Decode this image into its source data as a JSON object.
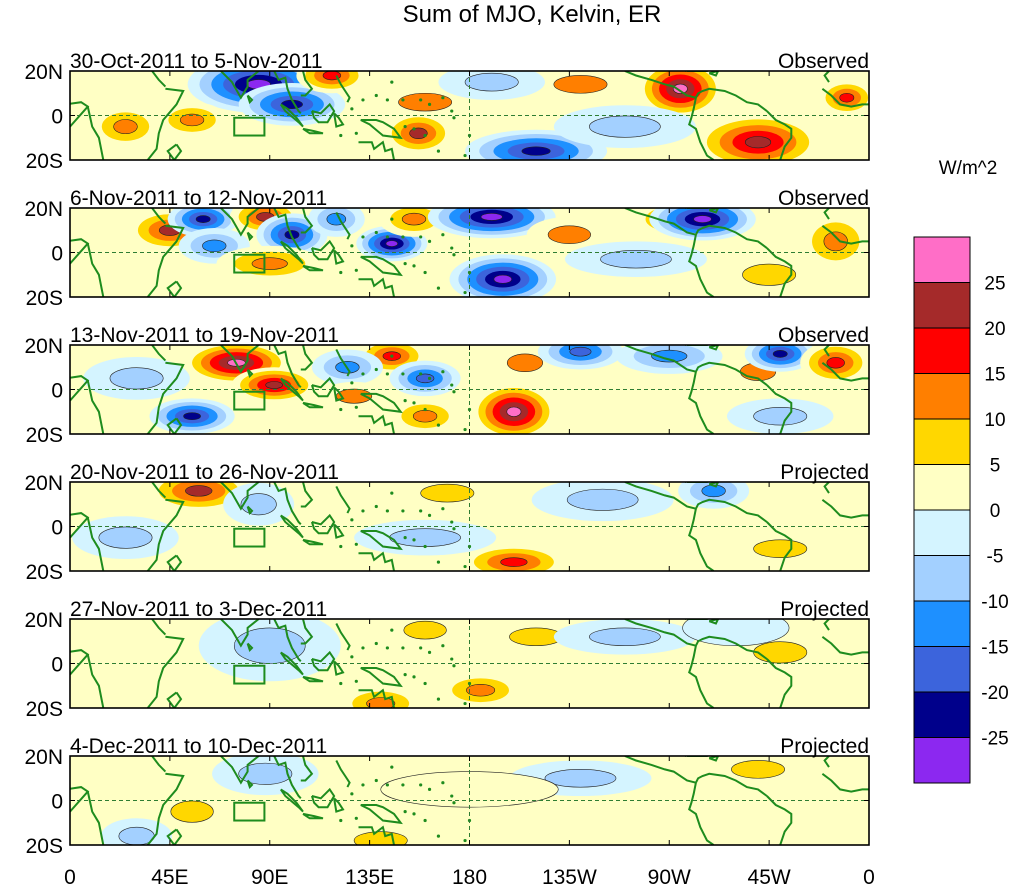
{
  "chart_data": {
    "type": "heatmap",
    "title": "Sum of MJO, Kelvin, ER",
    "units_label": "W/m^2",
    "x_ticks": [
      "0",
      "45E",
      "90E",
      "135E",
      "180",
      "135W",
      "90W",
      "45W",
      "0"
    ],
    "y_ticks": [
      "20N",
      "0",
      "20S"
    ],
    "ylim": [
      -20,
      20
    ],
    "xlim": [
      0,
      360
    ],
    "colorbar": {
      "levels": [
        -25,
        -20,
        -15,
        -10,
        -5,
        0,
        5,
        10,
        15,
        20,
        25
      ],
      "labels": [
        "25",
        "20",
        "15",
        "10",
        "5",
        "0",
        "-5",
        "-10",
        "-15",
        "-20",
        "-25"
      ],
      "colors": [
        "#ff6ec7",
        "#a52a2a",
        "#ff0000",
        "#ff7f00",
        "#ffd700",
        "#ffffc4",
        "#d4f4ff",
        "#a3d0ff",
        "#1e90ff",
        "#3c64dc",
        "#00008b",
        "#8c28f0"
      ]
    },
    "panels": [
      {
        "date_range": "30-Oct-2011 to 5-Nov-2011",
        "status": "Observed",
        "features": [
          {
            "lon": 85,
            "lat": 14,
            "value": -30,
            "rlon": 20,
            "rlat": 8
          },
          {
            "lon": 100,
            "lat": 5,
            "value": -22,
            "rlon": 15,
            "rlat": 6
          },
          {
            "lon": 118,
            "lat": 18,
            "value": 18,
            "rlon": 10,
            "rlat": 5
          },
          {
            "lon": 55,
            "lat": -2,
            "value": 12,
            "rlon": 10,
            "rlat": 5
          },
          {
            "lon": 25,
            "lat": -5,
            "value": 12,
            "rlon": 10,
            "rlat": 6
          },
          {
            "lon": 160,
            "lat": 6,
            "value": 10,
            "rlon": 15,
            "rlat": 5
          },
          {
            "lon": 157,
            "lat": -8,
            "value": 20,
            "rlon": 10,
            "rlat": 6
          },
          {
            "lon": 210,
            "lat": -16,
            "value": -22,
            "rlon": 20,
            "rlat": 6
          },
          {
            "lon": 275,
            "lat": 12,
            "value": 28,
            "rlon": 12,
            "rlat": 8
          },
          {
            "lon": 310,
            "lat": -12,
            "value": 22,
            "rlon": 18,
            "rlat": 8
          },
          {
            "lon": 230,
            "lat": 14,
            "value": 10,
            "rlon": 15,
            "rlat": 5
          },
          {
            "lon": 250,
            "lat": -5,
            "value": -7,
            "rlon": 20,
            "rlat": 6
          },
          {
            "lon": 190,
            "lat": 15,
            "value": -8,
            "rlon": 15,
            "rlat": 5
          },
          {
            "lon": 350,
            "lat": 8,
            "value": 18,
            "rlon": 8,
            "rlat": 5
          }
        ]
      },
      {
        "date_range": "6-Nov-2011 to 12-Nov-2011",
        "status": "Observed",
        "features": [
          {
            "lon": 45,
            "lat": 10,
            "value": 20,
            "rlon": 12,
            "rlat": 6
          },
          {
            "lon": 60,
            "lat": 15,
            "value": -22,
            "rlon": 10,
            "rlat": 5
          },
          {
            "lon": 65,
            "lat": 3,
            "value": -12,
            "rlon": 10,
            "rlat": 5
          },
          {
            "lon": 88,
            "lat": 16,
            "value": 20,
            "rlon": 10,
            "rlat": 5
          },
          {
            "lon": 100,
            "lat": 8,
            "value": -22,
            "rlon": 10,
            "rlat": 6
          },
          {
            "lon": 120,
            "lat": 15,
            "value": -15,
            "rlon": 8,
            "rlat": 5
          },
          {
            "lon": 145,
            "lat": 4,
            "value": -26,
            "rlon": 10,
            "rlat": 5
          },
          {
            "lon": 155,
            "lat": 15,
            "value": 12,
            "rlon": 10,
            "rlat": 5
          },
          {
            "lon": 190,
            "lat": 16,
            "value": -26,
            "rlon": 18,
            "rlat": 6
          },
          {
            "lon": 195,
            "lat": -12,
            "value": -28,
            "rlon": 15,
            "rlat": 7
          },
          {
            "lon": 90,
            "lat": -5,
            "value": 12,
            "rlon": 15,
            "rlat": 5
          },
          {
            "lon": 225,
            "lat": 8,
            "value": 10,
            "rlon": 12,
            "rlat": 5
          },
          {
            "lon": 255,
            "lat": -3,
            "value": -10,
            "rlon": 20,
            "rlat": 5
          },
          {
            "lon": 270,
            "lat": 15,
            "value": 12,
            "rlon": 10,
            "rlat": 5
          },
          {
            "lon": 285,
            "lat": 15,
            "value": -26,
            "rlon": 15,
            "rlat": 6
          },
          {
            "lon": 315,
            "lat": -10,
            "value": 8,
            "rlon": 15,
            "rlat": 6
          },
          {
            "lon": 345,
            "lat": 5,
            "value": 12,
            "rlon": 10,
            "rlat": 8
          }
        ]
      },
      {
        "date_range": "13-Nov-2011 to 19-Nov-2011",
        "status": "Observed",
        "features": [
          {
            "lon": 75,
            "lat": 12,
            "value": 27,
            "rlon": 15,
            "rlat": 6
          },
          {
            "lon": 92,
            "lat": 2,
            "value": 22,
            "rlon": 12,
            "rlat": 5
          },
          {
            "lon": 55,
            "lat": -12,
            "value": -22,
            "rlon": 12,
            "rlat": 5
          },
          {
            "lon": 30,
            "lat": 5,
            "value": -8,
            "rlon": 15,
            "rlat": 6
          },
          {
            "lon": 145,
            "lat": 15,
            "value": 18,
            "rlon": 10,
            "rlat": 5
          },
          {
            "lon": 125,
            "lat": 10,
            "value": -15,
            "rlon": 10,
            "rlat": 5
          },
          {
            "lon": 128,
            "lat": -3,
            "value": 10,
            "rlon": 10,
            "rlat": 4
          },
          {
            "lon": 160,
            "lat": 5,
            "value": -18,
            "rlon": 10,
            "rlat": 5
          },
          {
            "lon": 160,
            "lat": -12,
            "value": 12,
            "rlon": 10,
            "rlat": 5
          },
          {
            "lon": 200,
            "lat": -10,
            "value": 28,
            "rlon": 12,
            "rlat": 8
          },
          {
            "lon": 205,
            "lat": 12,
            "value": 10,
            "rlon": 10,
            "rlat": 5
          },
          {
            "lon": 230,
            "lat": 17,
            "value": -20,
            "rlon": 12,
            "rlat": 5
          },
          {
            "lon": 270,
            "lat": 15,
            "value": -15,
            "rlon": 15,
            "rlat": 5
          },
          {
            "lon": 310,
            "lat": 8,
            "value": 10,
            "rlon": 10,
            "rlat": 5
          },
          {
            "lon": 320,
            "lat": 16,
            "value": -22,
            "rlon": 10,
            "rlat": 5
          },
          {
            "lon": 345,
            "lat": 12,
            "value": 18,
            "rlon": 10,
            "rlat": 6
          },
          {
            "lon": 320,
            "lat": -12,
            "value": -10,
            "rlon": 15,
            "rlat": 5
          }
        ]
      },
      {
        "date_range": "20-Nov-2011 to 26-Nov-2011",
        "status": "Projected",
        "features": [
          {
            "lon": 58,
            "lat": 16,
            "value": 20,
            "rlon": 15,
            "rlat": 6
          },
          {
            "lon": 85,
            "lat": 10,
            "value": -10,
            "rlon": 10,
            "rlat": 6
          },
          {
            "lon": 170,
            "lat": 15,
            "value": 8,
            "rlon": 15,
            "rlat": 5
          },
          {
            "lon": 200,
            "lat": -16,
            "value": 16,
            "rlon": 15,
            "rlat": 5
          },
          {
            "lon": 240,
            "lat": 12,
            "value": -10,
            "rlon": 20,
            "rlat": 6
          },
          {
            "lon": 290,
            "lat": 16,
            "value": -12,
            "rlon": 10,
            "rlat": 5
          },
          {
            "lon": 160,
            "lat": -5,
            "value": -6,
            "rlon": 20,
            "rlat": 5
          },
          {
            "lon": 320,
            "lat": -10,
            "value": 7,
            "rlon": 15,
            "rlat": 5
          },
          {
            "lon": 25,
            "lat": -5,
            "value": -6,
            "rlon": 15,
            "rlat": 6
          }
        ]
      },
      {
        "date_range": "27-Nov-2011 to 3-Dec-2011",
        "status": "Projected",
        "features": [
          {
            "lon": 140,
            "lat": -18,
            "value": 12,
            "rlon": 12,
            "rlat": 5
          },
          {
            "lon": 185,
            "lat": -12,
            "value": 12,
            "rlon": 12,
            "rlat": 5
          },
          {
            "lon": 160,
            "lat": 15,
            "value": 8,
            "rlon": 12,
            "rlat": 5
          },
          {
            "lon": 210,
            "lat": 12,
            "value": 8,
            "rlon": 15,
            "rlat": 5
          },
          {
            "lon": 90,
            "lat": 8,
            "value": -6,
            "rlon": 20,
            "rlat": 10
          },
          {
            "lon": 250,
            "lat": 12,
            "value": -6,
            "rlon": 20,
            "rlat": 5
          },
          {
            "lon": 320,
            "lat": 5,
            "value": 6,
            "rlon": 15,
            "rlat": 6
          },
          {
            "lon": 300,
            "lat": 16,
            "value": -5,
            "rlon": 15,
            "rlat": 5
          }
        ]
      },
      {
        "date_range": "4-Dec-2011 to 10-Dec-2011",
        "status": "Projected",
        "features": [
          {
            "lon": 55,
            "lat": -5,
            "value": 9,
            "rlon": 12,
            "rlat": 6
          },
          {
            "lon": 88,
            "lat": 12,
            "value": -8,
            "rlon": 15,
            "rlat": 6
          },
          {
            "lon": 30,
            "lat": -16,
            "value": -8,
            "rlon": 10,
            "rlat": 5
          },
          {
            "lon": 140,
            "lat": -18,
            "value": 6,
            "rlon": 15,
            "rlat": 5
          },
          {
            "lon": 230,
            "lat": 10,
            "value": -6,
            "rlon": 20,
            "rlat": 5
          },
          {
            "lon": 310,
            "lat": 14,
            "value": 6,
            "rlon": 15,
            "rlat": 5
          },
          {
            "lon": 180,
            "lat": 5,
            "value": 4,
            "rlon": 25,
            "rlat": 5
          }
        ]
      }
    ]
  }
}
